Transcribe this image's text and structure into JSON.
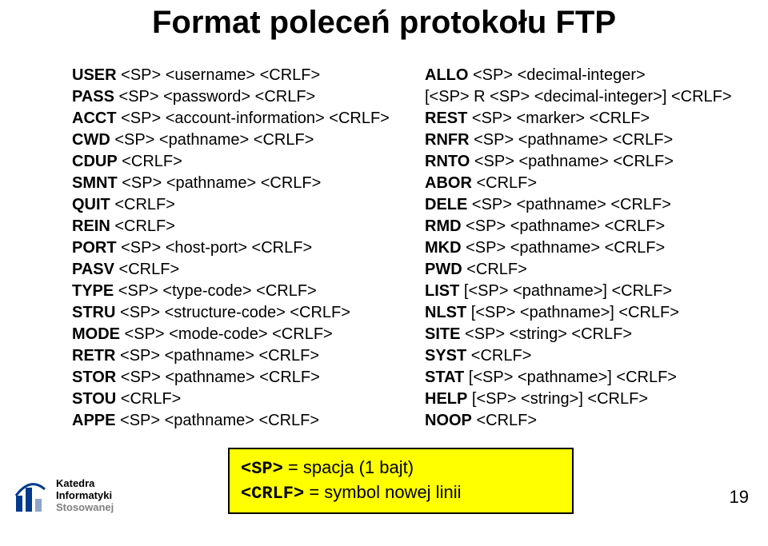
{
  "title": "Format poleceń protokołu FTP",
  "left_column": [
    {
      "cmd": "USER",
      "rest": " <SP> <username> <CRLF>"
    },
    {
      "cmd": "PASS",
      "rest": " <SP> <password> <CRLF>"
    },
    {
      "cmd": "ACCT",
      "rest": " <SP> <account-information> <CRLF>"
    },
    {
      "cmd": "CWD",
      "rest": " <SP> <pathname> <CRLF>"
    },
    {
      "cmd": "CDUP",
      "rest": " <CRLF>"
    },
    {
      "cmd": "SMNT",
      "rest": " <SP> <pathname> <CRLF>"
    },
    {
      "cmd": "QUIT",
      "rest": " <CRLF>"
    },
    {
      "cmd": "REIN",
      "rest": " <CRLF>"
    },
    {
      "cmd": "PORT",
      "rest": " <SP> <host-port> <CRLF>"
    },
    {
      "cmd": "PASV",
      "rest": " <CRLF>"
    },
    {
      "cmd": "TYPE",
      "rest": " <SP> <type-code> <CRLF>"
    },
    {
      "cmd": "STRU",
      "rest": " <SP> <structure-code> <CRLF>"
    },
    {
      "cmd": "MODE",
      "rest": " <SP> <mode-code> <CRLF>"
    },
    {
      "cmd": "RETR",
      "rest": " <SP> <pathname> <CRLF>"
    },
    {
      "cmd": "STOR",
      "rest": " <SP> <pathname> <CRLF>"
    },
    {
      "cmd": "STOU",
      "rest": " <CRLF>"
    },
    {
      "cmd": "APPE",
      "rest": " <SP> <pathname> <CRLF>"
    }
  ],
  "right_column": [
    {
      "cmd": "ALLO",
      "rest": " <SP> <decimal-integer>"
    },
    {
      "cmd": "",
      "rest": "    [<SP> R <SP> <decimal-integer>] <CRLF>"
    },
    {
      "cmd": "REST",
      "rest": " <SP> <marker> <CRLF>"
    },
    {
      "cmd": "RNFR",
      "rest": " <SP> <pathname> <CRLF>"
    },
    {
      "cmd": "RNTO",
      "rest": " <SP> <pathname> <CRLF>"
    },
    {
      "cmd": "ABOR",
      "rest": " <CRLF>"
    },
    {
      "cmd": "DELE",
      "rest": " <SP> <pathname> <CRLF>"
    },
    {
      "cmd": "RMD",
      "rest": " <SP> <pathname> <CRLF>"
    },
    {
      "cmd": "MKD",
      "rest": " <SP> <pathname> <CRLF>"
    },
    {
      "cmd": "PWD",
      "rest": " <CRLF>"
    },
    {
      "cmd": "LIST",
      "rest": " [<SP> <pathname>] <CRLF>"
    },
    {
      "cmd": "NLST",
      "rest": " [<SP> <pathname>] <CRLF>"
    },
    {
      "cmd": "SITE",
      "rest": " <SP> <string> <CRLF>"
    },
    {
      "cmd": "SYST",
      "rest": " <CRLF>"
    },
    {
      "cmd": "STAT",
      "rest": " [<SP> <pathname>] <CRLF>"
    },
    {
      "cmd": "HELP",
      "rest": " [<SP> <string>] <CRLF>"
    },
    {
      "cmd": "NOOP",
      "rest": " <CRLF>"
    }
  ],
  "callout": {
    "line1_mono": "<SP>",
    "line1_rest": " = spacja (1 bajt)",
    "line2_mono": "<CRLF>",
    "line2_rest": " = symbol nowej linii",
    "bg": "#ffff00",
    "border": "#000000"
  },
  "footer": {
    "line1": "Katedra",
    "line2": "Informatyki",
    "line3": "Stosowanej"
  },
  "logo_colors": {
    "bar1": "#003a8c",
    "bar2": "#003a8c",
    "bar3": "#8fa5c9"
  },
  "page_number": "19",
  "colors": {
    "text": "#000000",
    "bg": "#ffffff"
  }
}
